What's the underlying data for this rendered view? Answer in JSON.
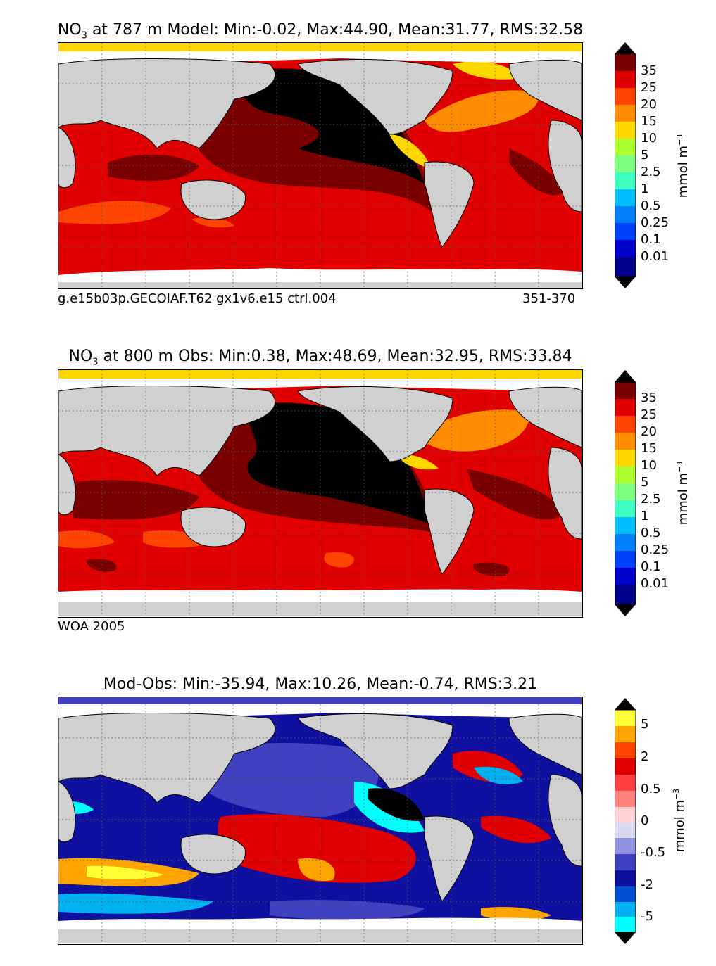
{
  "panels": [
    {
      "title_pre": "NO",
      "title_sub": "3",
      "title_post": " at 787 m Model: Min:-0.02, Max:44.90, Mean:31.77, RMS:32.58",
      "footer_left": "g.e15b03p.GECOIAF.T62 gx1v6.e15 ctrl.004",
      "footer_right": "351-370"
    },
    {
      "title_pre": "NO",
      "title_sub": "3",
      "title_post": " at 800 m Obs: Min:0.38, Max:48.69, Mean:32.95, RMS:33.84",
      "footer_left": "WOA 2005",
      "footer_right": ""
    },
    {
      "title_pre": "",
      "title_sub": "",
      "title_post": "Mod-Obs: Min:-35.94, Max:10.26, Mean:-0.74, RMS:3.21",
      "footer_left": "",
      "footer_right": ""
    }
  ],
  "colorbars": {
    "nitrate": {
      "unit_pre": "mmol m",
      "unit_sup": "−3",
      "ticks": [
        "35",
        "25",
        "20",
        "15",
        "10",
        "5",
        "2.5",
        "1",
        "0.5",
        "0.25",
        "0.1",
        "0.01"
      ],
      "colors": [
        "#000000",
        "#7a0000",
        "#e00000",
        "#ff4500",
        "#ff8c00",
        "#ffd700",
        "#adff2f",
        "#7fff7f",
        "#3fffbf",
        "#00bfff",
        "#0080ff",
        "#0040ff",
        "#0000cd",
        "#00008b"
      ]
    },
    "difference": {
      "unit_pre": "mmol m",
      "unit_sup": "−3",
      "ticks": [
        "5",
        "2",
        "0.5",
        "0",
        "-0.5",
        "-2",
        "-5"
      ],
      "colors": [
        "#000000",
        "#ffff33",
        "#ffa500",
        "#ff4500",
        "#e00000",
        "#ff4040",
        "#ff8080",
        "#ffd0d0",
        "#d8d8f0",
        "#9090e0",
        "#4040c0",
        "#1010a0",
        "#0050d0",
        "#00b0f0",
        "#00ffff",
        "#000000"
      ]
    }
  },
  "chart_data": [
    {
      "type": "heatmap",
      "title": "NO3 at 787 m Model: Min:-0.02, Max:44.90, Mean:31.77, RMS:32.58",
      "colorbar_label": "mmol m−3",
      "levels": [
        0.01,
        0.1,
        0.25,
        0.5,
        1,
        2.5,
        5,
        10,
        15,
        20,
        25,
        35
      ],
      "stats": {
        "min": -0.02,
        "max": 44.9,
        "mean": 31.77,
        "rms": 32.58
      },
      "depth_m": 787,
      "source": "g.e15b03p.GECOIAF.T62 gx1v6.e15 ctrl.004",
      "years": "351-370",
      "grid": true
    },
    {
      "type": "heatmap",
      "title": "NO3 at 800 m Obs: Min:0.38, Max:48.69, Mean:32.95, RMS:33.84",
      "colorbar_label": "mmol m−3",
      "levels": [
        0.01,
        0.1,
        0.25,
        0.5,
        1,
        2.5,
        5,
        10,
        15,
        20,
        25,
        35
      ],
      "stats": {
        "min": 0.38,
        "max": 48.69,
        "mean": 32.95,
        "rms": 33.84
      },
      "depth_m": 800,
      "source": "WOA 2005",
      "grid": true
    },
    {
      "type": "heatmap",
      "title": "Mod-Obs: Min:-35.94, Max:10.26, Mean:-0.74, RMS:3.21",
      "colorbar_label": "mmol m−3",
      "levels": [
        -5,
        -2,
        -0.5,
        0,
        0.5,
        2,
        5
      ],
      "stats": {
        "min": -35.94,
        "max": 10.26,
        "mean": -0.74,
        "rms": 3.21
      },
      "grid": true
    }
  ]
}
